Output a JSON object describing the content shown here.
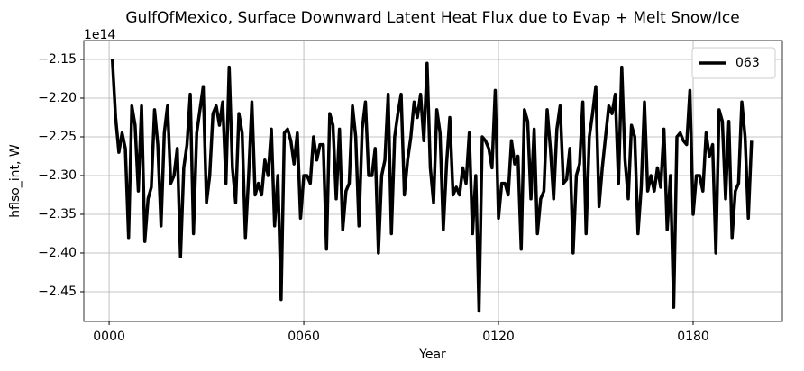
{
  "chart_data": {
    "type": "line",
    "title": "GulfOfMexico, Surface Downward Latent Heat Flux due to Evap + Melt Snow/Ice",
    "x_label": "Year",
    "y_label": "hflso_int, W",
    "y_offset_label": "1e14",
    "x": [
      1,
      2,
      3,
      4,
      5,
      6,
      7,
      8,
      9,
      10,
      11,
      12,
      13,
      14,
      15,
      16,
      17,
      18,
      19,
      20,
      21,
      22,
      23,
      24,
      25,
      26,
      27,
      28,
      29,
      30,
      31,
      32,
      33,
      34,
      35,
      36,
      37,
      38,
      39,
      40,
      41,
      42,
      43,
      44,
      45,
      46,
      47,
      48,
      49,
      50,
      51,
      52,
      53,
      54,
      55,
      56,
      57,
      58,
      59,
      60,
      61,
      62,
      63,
      64,
      65,
      66,
      67,
      68,
      69,
      70,
      71,
      72,
      73,
      74,
      75,
      76,
      77,
      78,
      79,
      80,
      81,
      82,
      83,
      84,
      85,
      86,
      87,
      88,
      89,
      90,
      91,
      92,
      93,
      94,
      95,
      96,
      97,
      98,
      99,
      100,
      101,
      102,
      103,
      104,
      105,
      106,
      107,
      108,
      109,
      110,
      111,
      112,
      113,
      114,
      115,
      116,
      117,
      118,
      119,
      120,
      121,
      122,
      123,
      124,
      125,
      126,
      127,
      128,
      129,
      130,
      131,
      132,
      133,
      134,
      135,
      136,
      137,
      138,
      139,
      140,
      141,
      142,
      143,
      144,
      145,
      146,
      147,
      148,
      149,
      150,
      151,
      152,
      153,
      154,
      155,
      156,
      157,
      158,
      159,
      160,
      161,
      162,
      163,
      164,
      165,
      166,
      167,
      168,
      169,
      170,
      171,
      172,
      173,
      174,
      175,
      176,
      177,
      178,
      179,
      180,
      181,
      182,
      183,
      184,
      185,
      186,
      187,
      188,
      189,
      190,
      191,
      192,
      193,
      194,
      195,
      196,
      197,
      198
    ],
    "series": [
      {
        "name": "063",
        "color": "#000000",
        "values": [
          -2.15,
          -2.225,
          -2.27,
          -2.245,
          -2.265,
          -2.38,
          -2.21,
          -2.235,
          -2.32,
          -2.21,
          -2.385,
          -2.33,
          -2.315,
          -2.215,
          -2.26,
          -2.365,
          -2.245,
          -2.21,
          -2.31,
          -2.3,
          -2.265,
          -2.405,
          -2.29,
          -2.26,
          -2.195,
          -2.375,
          -2.245,
          -2.215,
          -2.185,
          -2.335,
          -2.3,
          -2.22,
          -2.21,
          -2.235,
          -2.205,
          -2.31,
          -2.16,
          -2.29,
          -2.335,
          -2.22,
          -2.245,
          -2.38,
          -2.3,
          -2.205,
          -2.325,
          -2.31,
          -2.325,
          -2.28,
          -2.3,
          -2.24,
          -2.365,
          -2.3,
          -2.46,
          -2.245,
          -2.24,
          -2.255,
          -2.285,
          -2.245,
          -2.355,
          -2.3,
          -2.3,
          -2.31,
          -2.25,
          -2.28,
          -2.26,
          -2.26,
          -2.395,
          -2.22,
          -2.235,
          -2.33,
          -2.24,
          -2.37,
          -2.32,
          -2.31,
          -2.21,
          -2.25,
          -2.365,
          -2.24,
          -2.205,
          -2.3,
          -2.3,
          -2.265,
          -2.4,
          -2.3,
          -2.28,
          -2.195,
          -2.375,
          -2.25,
          -2.22,
          -2.195,
          -2.325,
          -2.28,
          -2.25,
          -2.205,
          -2.225,
          -2.195,
          -2.255,
          -2.155,
          -2.29,
          -2.335,
          -2.215,
          -2.245,
          -2.37,
          -2.285,
          -2.225,
          -2.325,
          -2.315,
          -2.325,
          -2.29,
          -2.31,
          -2.245,
          -2.375,
          -2.3,
          -2.475,
          -2.25,
          -2.255,
          -2.265,
          -2.29,
          -2.19,
          -2.355,
          -2.31,
          -2.31,
          -2.325,
          -2.255,
          -2.285,
          -2.275,
          -2.395,
          -2.215,
          -2.23,
          -2.33,
          -2.24,
          -2.375,
          -2.33,
          -2.32,
          -2.215,
          -2.265,
          -2.33,
          -2.24,
          -2.21,
          -2.31,
          -2.305,
          -2.265,
          -2.4,
          -2.3,
          -2.285,
          -2.205,
          -2.375,
          -2.25,
          -2.22,
          -2.185,
          -2.34,
          -2.29,
          -2.25,
          -2.21,
          -2.22,
          -2.195,
          -2.31,
          -2.16,
          -2.28,
          -2.33,
          -2.235,
          -2.25,
          -2.375,
          -2.315,
          -2.205,
          -2.32,
          -2.3,
          -2.32,
          -2.29,
          -2.315,
          -2.24,
          -2.37,
          -2.3,
          -2.47,
          -2.25,
          -2.245,
          -2.255,
          -2.26,
          -2.19,
          -2.35,
          -2.3,
          -2.3,
          -2.32,
          -2.245,
          -2.275,
          -2.26,
          -2.4,
          -2.215,
          -2.23,
          -2.33,
          -2.23,
          -2.38,
          -2.32,
          -2.31,
          -2.205,
          -2.25,
          -2.355,
          -2.255
        ]
      }
    ],
    "xlim": [
      -7.8,
      207.5
    ],
    "xticks": [
      {
        "value": 0,
        "label": "0000"
      },
      {
        "value": 60,
        "label": "0060"
      },
      {
        "value": 120,
        "label": "0120"
      },
      {
        "value": 180,
        "label": "0180"
      }
    ],
    "ylim": [
      -2.4884,
      -2.1256
    ],
    "yticks": [
      {
        "value": -2.15,
        "label": "−2.15"
      },
      {
        "value": -2.2,
        "label": "−2.20"
      },
      {
        "value": -2.25,
        "label": "−2.25"
      },
      {
        "value": -2.3,
        "label": "−2.30"
      },
      {
        "value": -2.35,
        "label": "−2.35"
      },
      {
        "value": -2.4,
        "label": "−2.40"
      },
      {
        "value": -2.45,
        "label": "−2.45"
      }
    ],
    "grid": true,
    "legend": "upper right"
  }
}
